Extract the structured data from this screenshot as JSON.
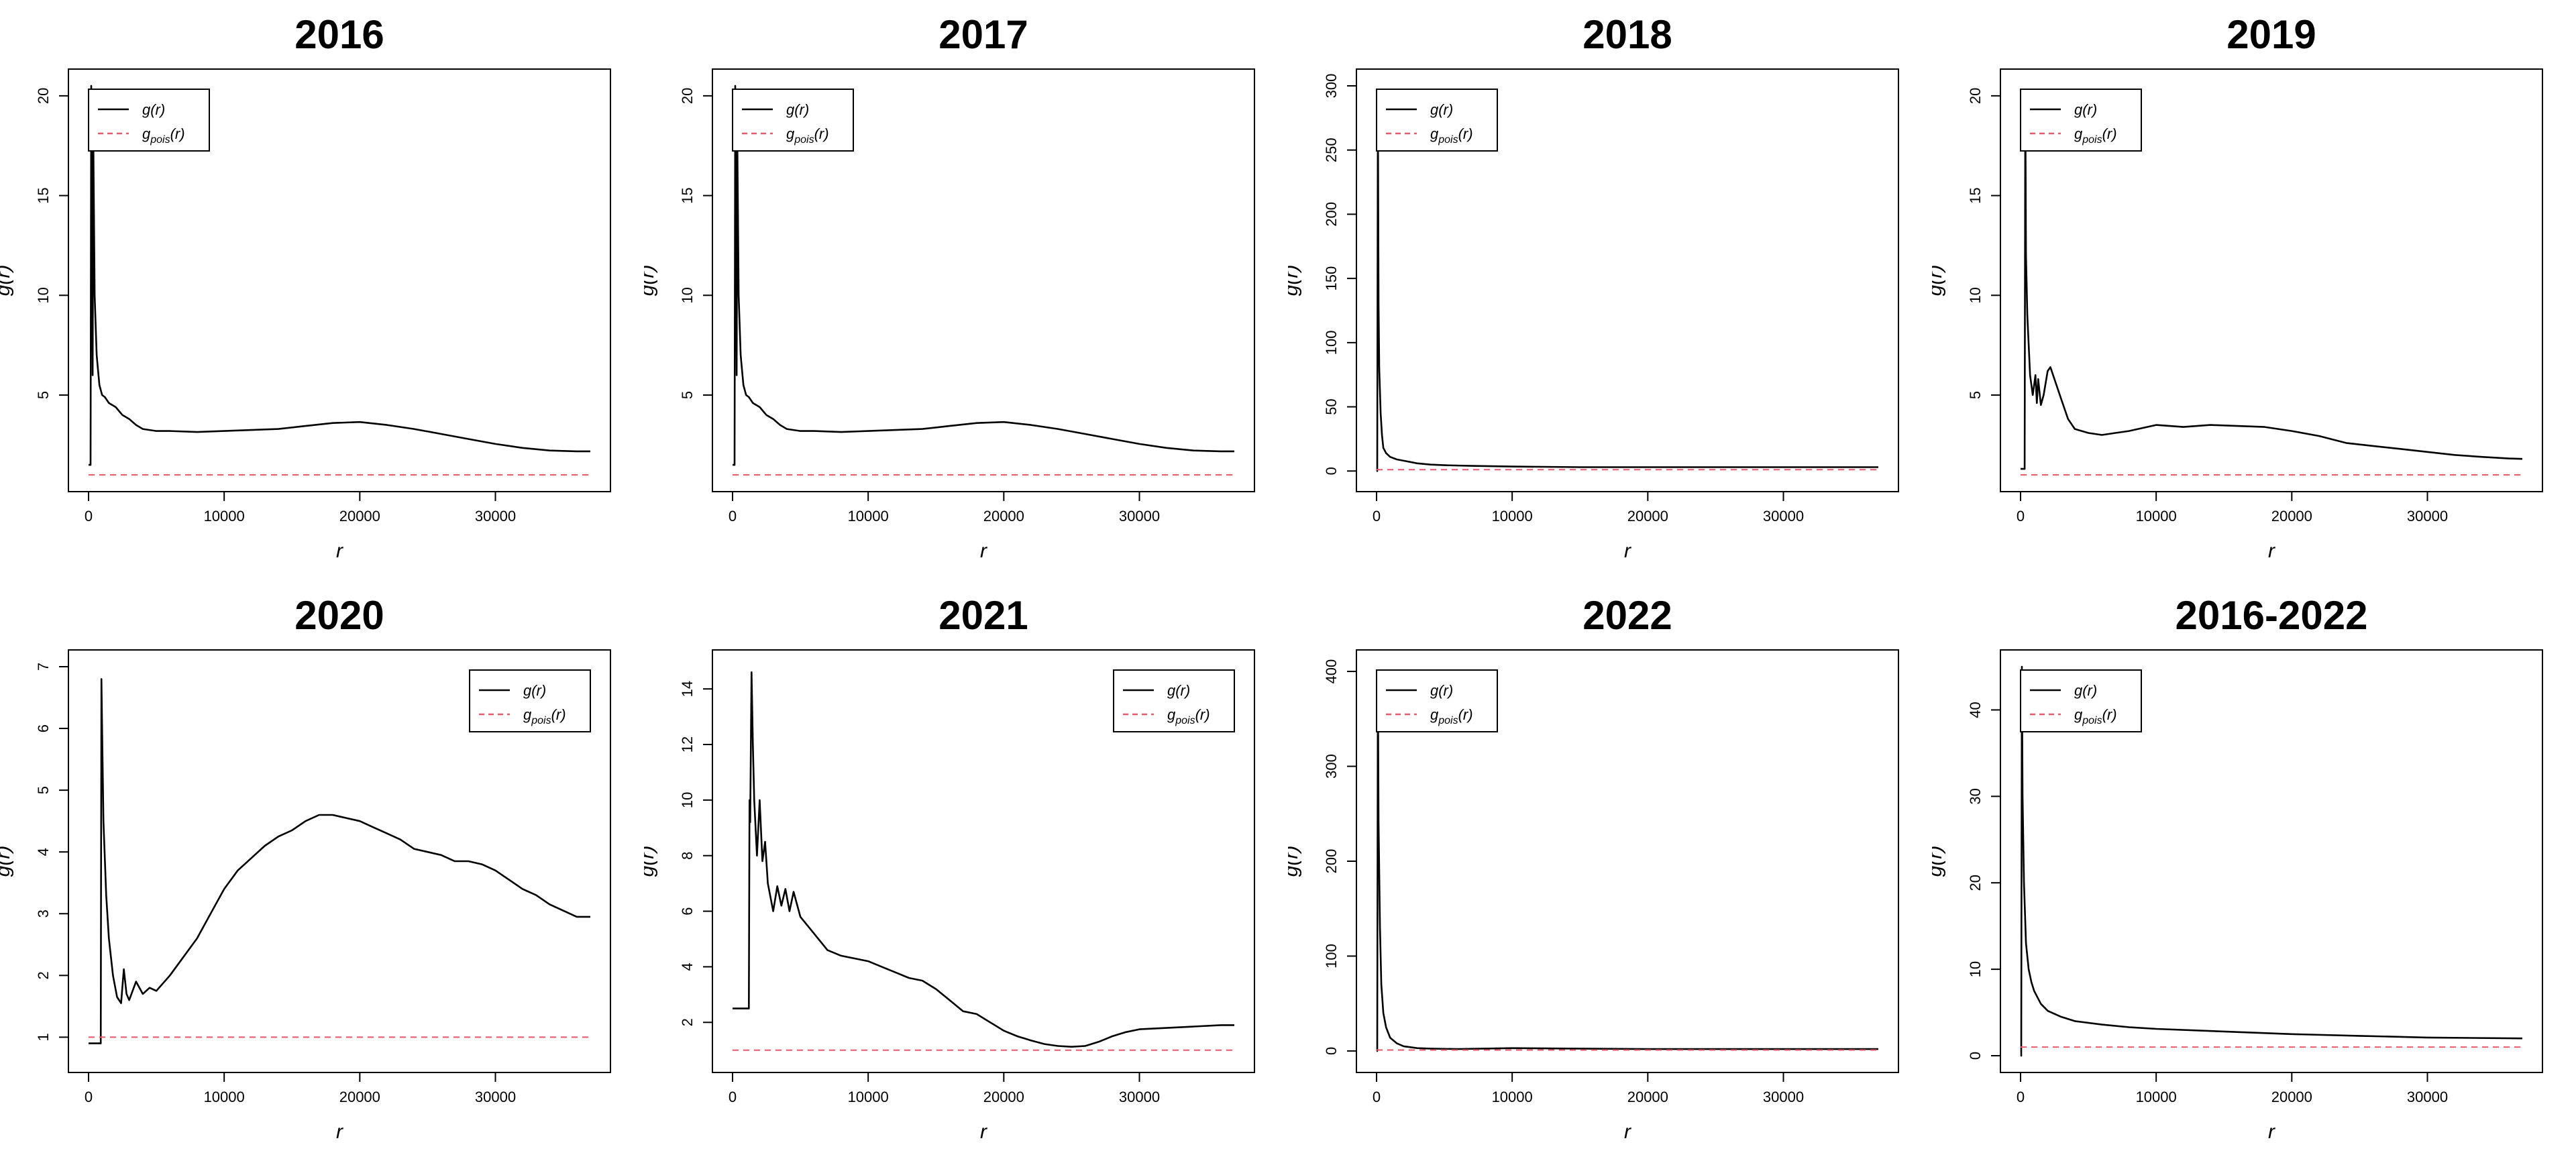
{
  "figure": {
    "background": "#ffffff",
    "line_color": "#000000",
    "reference_color": "#e8596a"
  },
  "chart_data": [
    {
      "type": "line",
      "title": "2016",
      "xlabel": "r",
      "ylabel": "g(r)",
      "xlim": [
        0,
        37000
      ],
      "ylim": [
        1,
        20.5
      ],
      "xticks": [
        0,
        10000,
        20000,
        30000
      ],
      "yticks": [
        5,
        10,
        15,
        20
      ],
      "legend": {
        "position": "top-left",
        "entries": [
          "g(r)",
          "g_pois(r)"
        ]
      },
      "series": [
        {
          "name": "g(r)",
          "style": "solid",
          "color": "#000000",
          "x": [
            0,
            150,
            200,
            300,
            350,
            450,
            600,
            800,
            1000,
            1200,
            1500,
            2000,
            2500,
            3000,
            3500,
            4000,
            5000,
            6000,
            8000,
            10000,
            12000,
            14000,
            16000,
            18000,
            20000,
            22000,
            24000,
            26000,
            28000,
            30000,
            32000,
            34000,
            36000,
            37000
          ],
          "y": [
            1.5,
            1.5,
            20.5,
            6.0,
            17.8,
            10.0,
            7.0,
            5.5,
            5.0,
            4.9,
            4.6,
            4.4,
            4.0,
            3.8,
            3.5,
            3.3,
            3.2,
            3.2,
            3.15,
            3.2,
            3.25,
            3.3,
            3.45,
            3.6,
            3.65,
            3.5,
            3.3,
            3.05,
            2.8,
            2.55,
            2.35,
            2.22,
            2.18,
            2.18
          ]
        },
        {
          "name": "g_pois(r)",
          "style": "dashed",
          "color": "#e8596a",
          "x": [
            0,
            37000
          ],
          "y": [
            1,
            1
          ]
        }
      ]
    },
    {
      "type": "line",
      "title": "2017",
      "xlabel": "r",
      "ylabel": "g(r)",
      "xlim": [
        0,
        37000
      ],
      "ylim": [
        1,
        20.5
      ],
      "xticks": [
        0,
        10000,
        20000,
        30000
      ],
      "yticks": [
        5,
        10,
        15,
        20
      ],
      "legend": {
        "position": "top-left",
        "entries": [
          "g(r)",
          "g_pois(r)"
        ]
      },
      "series": [
        {
          "name": "g(r)",
          "style": "solid",
          "color": "#000000",
          "x": [
            0,
            150,
            200,
            300,
            350,
            450,
            600,
            800,
            1000,
            1200,
            1500,
            2000,
            2500,
            3000,
            3500,
            4000,
            5000,
            6000,
            8000,
            10000,
            12000,
            14000,
            16000,
            18000,
            20000,
            22000,
            24000,
            26000,
            28000,
            30000,
            32000,
            34000,
            36000,
            37000
          ],
          "y": [
            1.5,
            1.5,
            20.5,
            6.0,
            17.8,
            10.0,
            7.0,
            5.5,
            5.0,
            4.9,
            4.6,
            4.4,
            4.0,
            3.8,
            3.5,
            3.3,
            3.2,
            3.2,
            3.15,
            3.2,
            3.25,
            3.3,
            3.45,
            3.6,
            3.65,
            3.5,
            3.3,
            3.05,
            2.8,
            2.55,
            2.35,
            2.22,
            2.18,
            2.18
          ]
        },
        {
          "name": "g_pois(r)",
          "style": "dashed",
          "color": "#e8596a",
          "x": [
            0,
            37000
          ],
          "y": [
            1,
            1
          ]
        }
      ]
    },
    {
      "type": "line",
      "title": "2018",
      "xlabel": "r",
      "ylabel": "g(r)",
      "xlim": [
        0,
        37000
      ],
      "ylim": [
        -3,
        300
      ],
      "xticks": [
        0,
        10000,
        20000,
        30000
      ],
      "yticks": [
        0,
        50,
        100,
        150,
        200,
        250,
        300
      ],
      "legend": {
        "position": "top-left",
        "entries": [
          "g(r)",
          "g_pois(r)"
        ]
      },
      "series": [
        {
          "name": "g(r)",
          "style": "solid",
          "color": "#000000",
          "x": [
            0,
            50,
            100,
            150,
            200,
            300,
            400,
            500,
            700,
            1000,
            1500,
            2000,
            3000,
            4000,
            5000,
            7000,
            10000,
            15000,
            20000,
            25000,
            30000,
            37000
          ],
          "y": [
            0,
            0,
            290,
            130,
            80,
            45,
            28,
            18,
            14,
            11,
            9,
            8,
            6,
            5,
            4.5,
            4,
            3.5,
            3,
            3,
            3,
            3,
            3
          ]
        },
        {
          "name": "g_pois(r)",
          "style": "dashed",
          "color": "#e8596a",
          "x": [
            0,
            37000
          ],
          "y": [
            1,
            1
          ]
        }
      ]
    },
    {
      "type": "line",
      "title": "2019",
      "xlabel": "r",
      "ylabel": "g(r)",
      "xlim": [
        0,
        37000
      ],
      "ylim": [
        1,
        20.5
      ],
      "xticks": [
        0,
        10000,
        20000,
        30000
      ],
      "yticks": [
        5,
        10,
        15,
        20
      ],
      "legend": {
        "position": "top-left",
        "entries": [
          "g(r)",
          "g_pois(r)"
        ]
      },
      "series": [
        {
          "name": "g(r)",
          "style": "solid",
          "color": "#000000",
          "x": [
            0,
            300,
            350,
            400,
            500,
            700,
            900,
            1100,
            1200,
            1300,
            1500,
            1700,
            2000,
            2200,
            2500,
            3000,
            3500,
            4000,
            5000,
            6000,
            7000,
            8000,
            10000,
            12000,
            14000,
            16000,
            18000,
            20000,
            22000,
            24000,
            26000,
            28000,
            30000,
            32000,
            34000,
            36000,
            37000
          ],
          "y": [
            1.3,
            1.3,
            20.2,
            12.0,
            9.0,
            6.0,
            5.0,
            6.0,
            4.6,
            5.8,
            4.5,
            5.0,
            6.2,
            6.4,
            5.8,
            4.8,
            3.8,
            3.3,
            3.1,
            3.0,
            3.1,
            3.2,
            3.5,
            3.4,
            3.5,
            3.45,
            3.4,
            3.2,
            2.95,
            2.6,
            2.45,
            2.3,
            2.15,
            2.0,
            1.9,
            1.82,
            1.8
          ]
        },
        {
          "name": "g_pois(r)",
          "style": "dashed",
          "color": "#e8596a",
          "x": [
            0,
            37000
          ],
          "y": [
            1,
            1
          ]
        }
      ]
    },
    {
      "type": "line",
      "title": "2020",
      "xlabel": "r",
      "ylabel": "g(r)",
      "xlim": [
        0,
        37000
      ],
      "ylim": [
        0.7,
        7
      ],
      "xticks": [
        0,
        10000,
        20000,
        30000
      ],
      "yticks": [
        1,
        2,
        3,
        4,
        5,
        6,
        7
      ],
      "legend": {
        "position": "top-right",
        "entries": [
          "g(r)",
          "g_pois(r)"
        ]
      },
      "series": [
        {
          "name": "g(r)",
          "style": "solid",
          "color": "#000000",
          "x": [
            0,
            900,
            950,
            1000,
            1100,
            1300,
            1500,
            1800,
            2100,
            2400,
            2600,
            2800,
            3000,
            3500,
            4000,
            4500,
            5000,
            6000,
            7000,
            8000,
            9000,
            10000,
            11000,
            12000,
            13000,
            14000,
            15000,
            16000,
            17000,
            18000,
            19000,
            20000,
            21000,
            22000,
            23000,
            24000,
            25000,
            26000,
            27000,
            28000,
            29000,
            30000,
            31000,
            32000,
            33000,
            34000,
            35000,
            36000,
            37000
          ],
          "y": [
            0.9,
            0.9,
            6.8,
            6.0,
            4.5,
            3.3,
            2.6,
            2.0,
            1.65,
            1.55,
            2.1,
            1.7,
            1.6,
            1.9,
            1.7,
            1.8,
            1.75,
            2.0,
            2.3,
            2.6,
            3.0,
            3.4,
            3.7,
            3.9,
            4.1,
            4.25,
            4.35,
            4.5,
            4.6,
            4.6,
            4.55,
            4.5,
            4.4,
            4.3,
            4.2,
            4.05,
            4.0,
            3.95,
            3.85,
            3.85,
            3.8,
            3.7,
            3.55,
            3.4,
            3.3,
            3.15,
            3.05,
            2.95,
            2.95
          ]
        },
        {
          "name": "g_pois(r)",
          "style": "dashed",
          "color": "#e8596a",
          "x": [
            0,
            37000
          ],
          "y": [
            1,
            1
          ]
        }
      ]
    },
    {
      "type": "line",
      "title": "2021",
      "xlabel": "r",
      "ylabel": "g(r)",
      "xlim": [
        0,
        37000
      ],
      "ylim": [
        0.8,
        14.8
      ],
      "xticks": [
        0,
        10000,
        20000,
        30000
      ],
      "yticks": [
        2,
        4,
        6,
        8,
        10,
        12,
        14
      ],
      "legend": {
        "position": "top-right",
        "entries": [
          "g(r)",
          "g_pois(r)"
        ]
      },
      "series": [
        {
          "name": "g(r)",
          "style": "solid",
          "color": "#000000",
          "x": [
            0,
            1200,
            1250,
            1300,
            1400,
            1500,
            1600,
            1800,
            2000,
            2200,
            2400,
            2600,
            3000,
            3300,
            3600,
            3900,
            4200,
            4500,
            5000,
            6000,
            7000,
            8000,
            9000,
            10000,
            11000,
            12000,
            13000,
            14000,
            15000,
            16000,
            17000,
            18000,
            19000,
            20000,
            21000,
            22000,
            23000,
            24000,
            25000,
            26000,
            27000,
            28000,
            29000,
            30000,
            32000,
            34000,
            36000,
            37000
          ],
          "y": [
            2.5,
            2.5,
            10.0,
            9.2,
            14.6,
            12.0,
            10.0,
            8.0,
            10.0,
            7.8,
            8.5,
            7.0,
            6.0,
            6.9,
            6.2,
            6.8,
            6.0,
            6.7,
            5.8,
            5.2,
            4.6,
            4.4,
            4.3,
            4.2,
            4.0,
            3.8,
            3.6,
            3.5,
            3.2,
            2.8,
            2.4,
            2.3,
            2.0,
            1.7,
            1.5,
            1.35,
            1.22,
            1.15,
            1.12,
            1.15,
            1.3,
            1.5,
            1.65,
            1.75,
            1.8,
            1.85,
            1.9,
            1.9
          ]
        },
        {
          "name": "g_pois(r)",
          "style": "dashed",
          "color": "#e8596a",
          "x": [
            0,
            37000
          ],
          "y": [
            1,
            1
          ]
        }
      ]
    },
    {
      "type": "line",
      "title": "2022",
      "xlabel": "r",
      "ylabel": "g(r)",
      "xlim": [
        0,
        37000
      ],
      "ylim": [
        -5,
        405
      ],
      "xticks": [
        0,
        10000,
        20000,
        30000
      ],
      "yticks": [
        0,
        100,
        200,
        300,
        400
      ],
      "legend": {
        "position": "top-left",
        "entries": [
          "g(r)",
          "g_pois(r)"
        ]
      },
      "series": [
        {
          "name": "g(r)",
          "style": "solid",
          "color": "#000000",
          "x": [
            0,
            50,
            100,
            150,
            250,
            350,
            500,
            700,
            1000,
            1500,
            2000,
            3000,
            4000,
            6000,
            10000,
            15000,
            20000,
            25000,
            30000,
            37000
          ],
          "y": [
            0,
            0,
            400,
            240,
            130,
            70,
            40,
            25,
            14,
            8,
            5,
            3,
            2.5,
            2,
            3,
            2.5,
            2,
            2,
            2,
            2
          ]
        },
        {
          "name": "g_pois(r)",
          "style": "dashed",
          "color": "#e8596a",
          "x": [
            0,
            37000
          ],
          "y": [
            1,
            1
          ]
        }
      ]
    },
    {
      "type": "line",
      "title": "2016-2022",
      "xlabel": "r",
      "ylabel": "g(r)",
      "xlim": [
        0,
        37000
      ],
      "ylim": [
        0,
        45
      ],
      "xticks": [
        0,
        10000,
        20000,
        30000
      ],
      "yticks": [
        0,
        10,
        20,
        30,
        40
      ],
      "legend": {
        "position": "top-left",
        "entries": [
          "g(r)",
          "g_pois(r)"
        ]
      },
      "series": [
        {
          "name": "g(r)",
          "style": "solid",
          "color": "#000000",
          "x": [
            0,
            50,
            100,
            150,
            250,
            400,
            600,
            800,
            1000,
            1500,
            2000,
            3000,
            4000,
            6000,
            8000,
            10000,
            15000,
            20000,
            25000,
            30000,
            37000
          ],
          "y": [
            0,
            0,
            45,
            30,
            20,
            13,
            10,
            8.5,
            7.5,
            6,
            5.2,
            4.5,
            4.0,
            3.6,
            3.3,
            3.1,
            2.8,
            2.5,
            2.3,
            2.1,
            2.0
          ]
        },
        {
          "name": "g_pois(r)",
          "style": "dashed",
          "color": "#e8596a",
          "x": [
            0,
            37000
          ],
          "y": [
            1,
            1
          ]
        }
      ]
    }
  ]
}
